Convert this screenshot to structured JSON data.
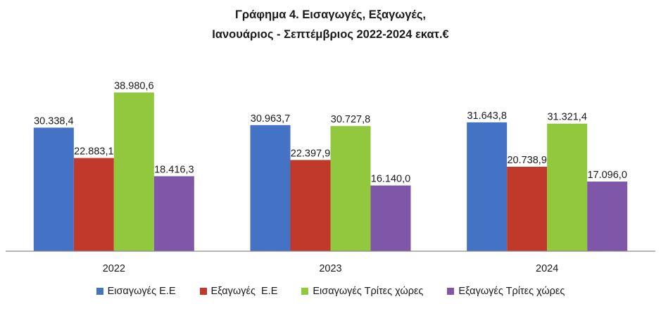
{
  "chart_data": {
    "type": "bar",
    "title": "Γράφημα 4. Εισαγωγές, Εξαγωγές,",
    "subtitle": "Ιανουάριος - Σεπτέμβριος 2022-2024 εκατ.€",
    "categories": [
      "2022",
      "2023",
      "2024"
    ],
    "series": [
      {
        "name": "Εισαγωγές Ε.Ε",
        "color": "#4472C4",
        "values": [
          30338.4,
          30963.7,
          31643.8
        ],
        "labels": [
          "30.338,4",
          "30.963,7",
          "31.643,8"
        ]
      },
      {
        "name": "Εξαγωγές  Ε.Ε",
        "color": "#C0392B",
        "values": [
          22883.1,
          22397.9,
          20738.9
        ],
        "labels": [
          "22.883,1",
          "22.397,9",
          "20.738,9"
        ]
      },
      {
        "name": "Εισαγωγές Τρίτες χώρες",
        "color": "#92C83E",
        "values": [
          38980.6,
          30727.8,
          31321.4
        ],
        "labels": [
          "38.980,6",
          "30.727,8",
          "31.321,4"
        ]
      },
      {
        "name": "Εξαγωγές Τρίτες χώρες",
        "color": "#7E57A8",
        "values": [
          18416.3,
          16140.0,
          17096.0
        ],
        "labels": [
          "18.416,3",
          "16.140,0",
          "17.096,0"
        ]
      }
    ],
    "xlabel": "",
    "ylabel": "",
    "ylim": [
      0,
      47000
    ],
    "grid": false,
    "legend_position": "bottom"
  }
}
